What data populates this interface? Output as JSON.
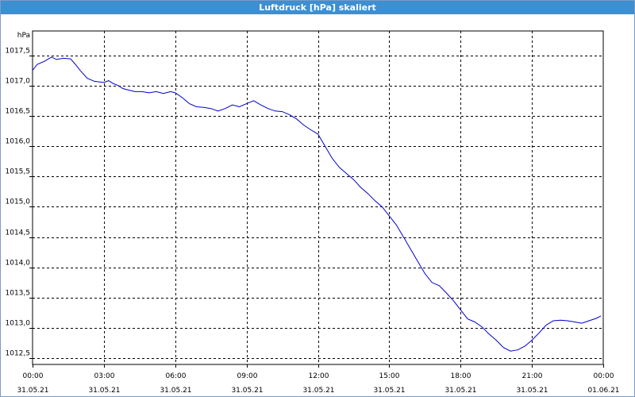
{
  "window": {
    "title": "Luftdruck [hPa] skaliert"
  },
  "chart_data": {
    "type": "line",
    "title": "Luftdruck [hPa] skaliert",
    "ylabel": "hPa",
    "xlabel": "",
    "ylim": [
      1012.4,
      1017.9
    ],
    "xlim": [
      0,
      24
    ],
    "grid": true,
    "line_color": "#0000cc",
    "y_ticks": [
      {
        "value": 1012.5,
        "label": "1012,5"
      },
      {
        "value": 1013.0,
        "label": "1013,0"
      },
      {
        "value": 1013.5,
        "label": "1013,5"
      },
      {
        "value": 1014.0,
        "label": "1014,0"
      },
      {
        "value": 1014.5,
        "label": "1014,5"
      },
      {
        "value": 1015.0,
        "label": "1015,0"
      },
      {
        "value": 1015.5,
        "label": "1015,5"
      },
      {
        "value": 1016.0,
        "label": "1016,0"
      },
      {
        "value": 1016.5,
        "label": "1016,5"
      },
      {
        "value": 1017.0,
        "label": "1017,0"
      },
      {
        "value": 1017.5,
        "label": "1017,5"
      }
    ],
    "x_ticks": [
      {
        "value": 0,
        "time": "00:00",
        "date": "31.05.21"
      },
      {
        "value": 3,
        "time": "03:00",
        "date": "31.05.21"
      },
      {
        "value": 6,
        "time": "06:00",
        "date": "31.05.21"
      },
      {
        "value": 9,
        "time": "09:00",
        "date": "31.05.21"
      },
      {
        "value": 12,
        "time": "12:00",
        "date": "31.05.21"
      },
      {
        "value": 15,
        "time": "15:00",
        "date": "31.05.21"
      },
      {
        "value": 18,
        "time": "18:00",
        "date": "31.05.21"
      },
      {
        "value": 21,
        "time": "21:00",
        "date": "31.05.21"
      },
      {
        "value": 24,
        "time": "00:00",
        "date": "01.06.21"
      }
    ],
    "series": [
      {
        "x": [
          0,
          0.2,
          0.5,
          0.8,
          1.0,
          1.3,
          1.6,
          1.8,
          2.0,
          2.3,
          2.6,
          2.8,
          3.0,
          3.2,
          3.4,
          3.6,
          3.8,
          4.0,
          4.3,
          4.6,
          4.9,
          5.2,
          5.5,
          5.8,
          6.0,
          6.3,
          6.6,
          6.9,
          7.2,
          7.5,
          7.8,
          8.1,
          8.4,
          8.7,
          9.0,
          9.3,
          9.6,
          9.9,
          10.2,
          10.5,
          10.8,
          11.1,
          11.4,
          11.7,
          12.0,
          12.3,
          12.6,
          12.9,
          13.2,
          13.5,
          13.8,
          14.1,
          14.4,
          14.7,
          15.0,
          15.3,
          15.6,
          15.9,
          16.2,
          16.5,
          16.8,
          17.1,
          17.4,
          17.7,
          18.0,
          18.3,
          18.6,
          18.9,
          19.2,
          19.5,
          19.8,
          20.1,
          20.4,
          20.7,
          21.0,
          21.3,
          21.6,
          21.9,
          22.2,
          22.5,
          22.8,
          23.1,
          23.4,
          23.7,
          23.9
        ],
        "y": [
          1017.25,
          1017.35,
          1017.4,
          1017.47,
          1017.43,
          1017.45,
          1017.44,
          1017.35,
          1017.25,
          1017.12,
          1017.07,
          1017.06,
          1017.05,
          1017.08,
          1017.03,
          1017.0,
          1016.95,
          1016.93,
          1016.9,
          1016.9,
          1016.88,
          1016.9,
          1016.87,
          1016.9,
          1016.88,
          1016.8,
          1016.7,
          1016.65,
          1016.64,
          1016.62,
          1016.58,
          1016.62,
          1016.68,
          1016.65,
          1016.7,
          1016.75,
          1016.68,
          1016.62,
          1016.58,
          1016.57,
          1016.52,
          1016.45,
          1016.35,
          1016.27,
          1016.2,
          1016.0,
          1015.8,
          1015.65,
          1015.55,
          1015.45,
          1015.32,
          1015.22,
          1015.1,
          1015.0,
          1014.85,
          1014.7,
          1014.5,
          1014.3,
          1014.1,
          1013.9,
          1013.75,
          1013.7,
          1013.58,
          1013.45,
          1013.3,
          1013.15,
          1013.1,
          1013.02,
          1012.9,
          1012.8,
          1012.68,
          1012.62,
          1012.64,
          1012.7,
          1012.8,
          1012.92,
          1013.05,
          1013.12,
          1013.13,
          1013.12,
          1013.1,
          1013.08,
          1013.12,
          1013.16,
          1013.2
        ]
      }
    ]
  }
}
